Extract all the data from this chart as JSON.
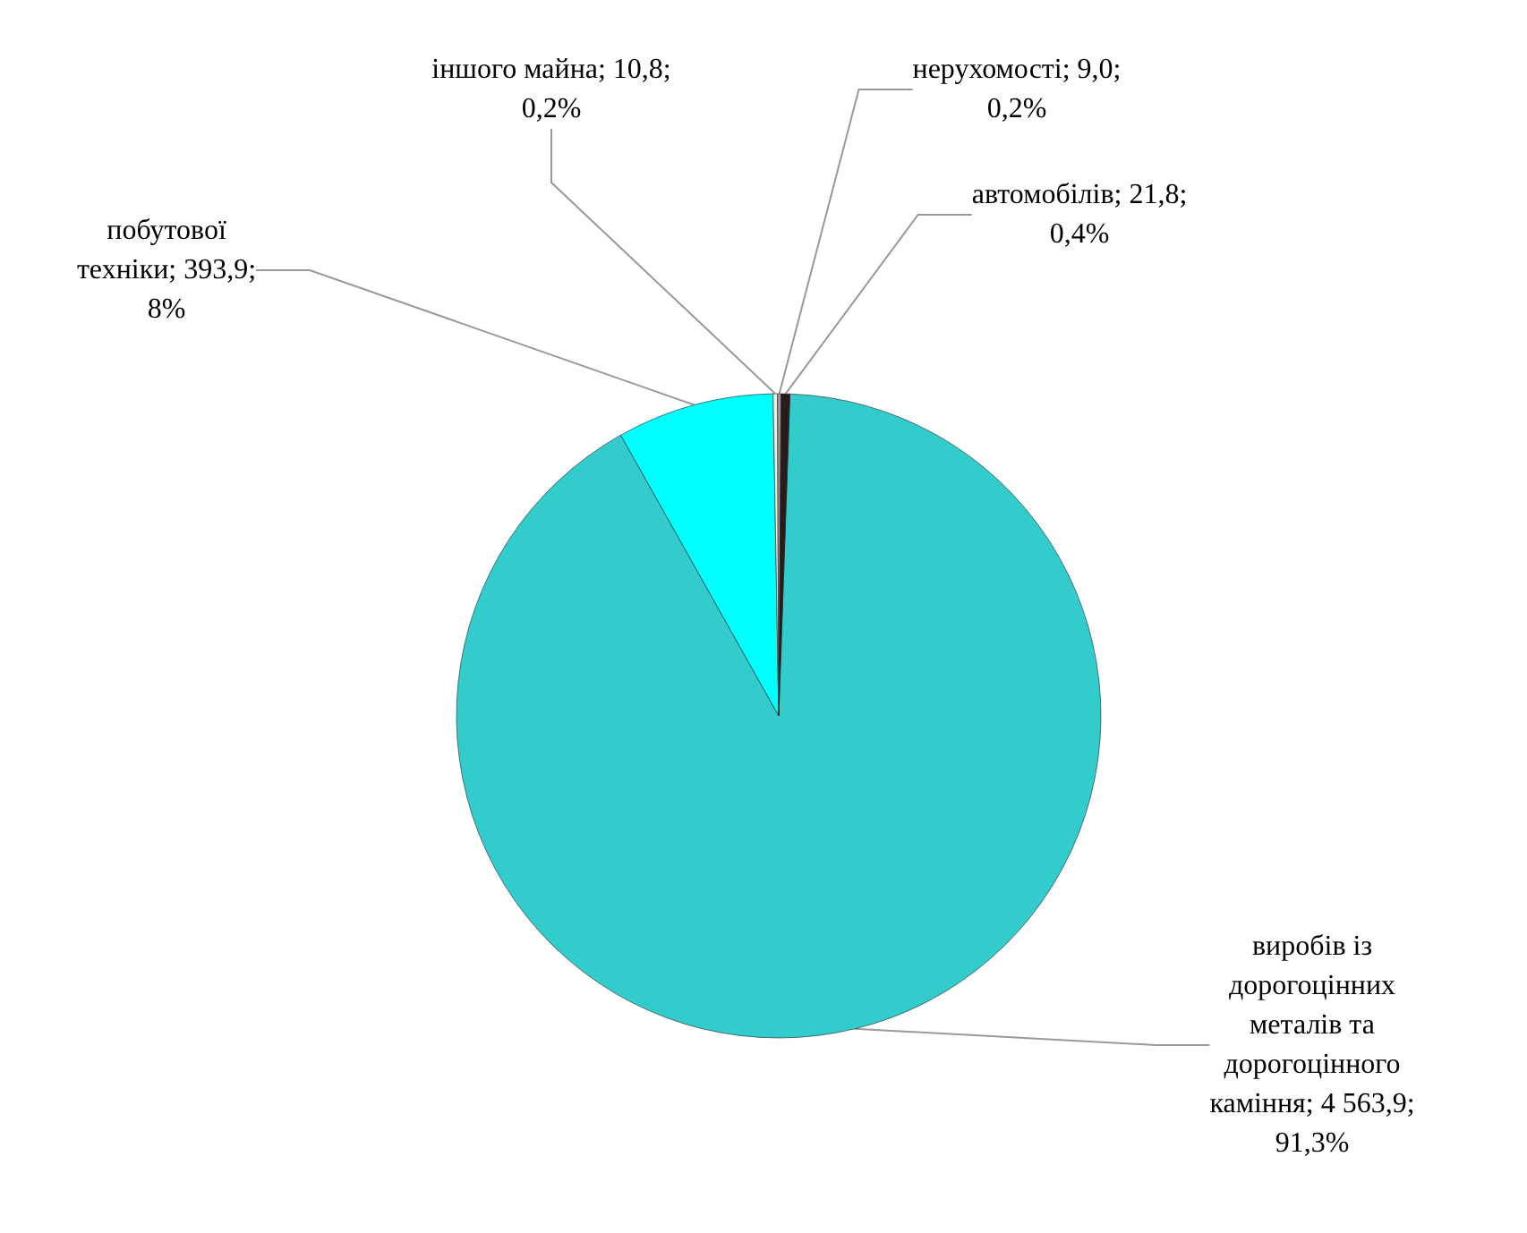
{
  "chart_data": {
    "type": "pie",
    "categories": [
      "виробів із дорогоцінних металів та дорогоцінного каміння",
      "побутової техніки",
      "іншого майна",
      "нерухомості",
      "автомобілів"
    ],
    "values": [
      4563.9,
      393.9,
      10.8,
      9.0,
      21.8
    ],
    "value_labels": [
      "; 4 563,9; 91,3%",
      "; 393,9; 8%",
      "; 10,8; 0,2%",
      "; 9,0; 0,2%",
      "; 21,8; 0,4%"
    ],
    "colors": [
      "#33cccc",
      "#00ffff",
      "#eeeedd",
      "#999999",
      "#2a1a1a"
    ],
    "legend": false
  }
}
